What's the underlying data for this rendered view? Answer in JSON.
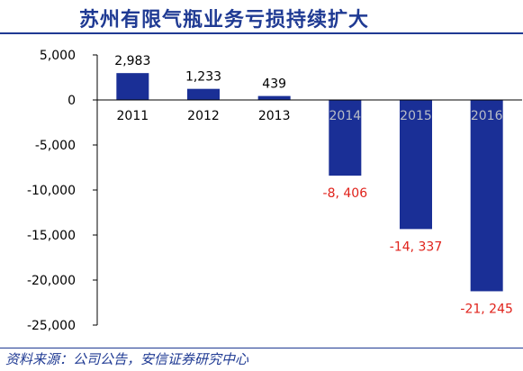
{
  "title": "苏州有限气瓶业务亏损持续扩大",
  "source": "资料来源：公司公告，安信证券研究中心",
  "colors": {
    "bar": "#1a2f96",
    "positive_label": "#000000",
    "negative_label": "#e0221b",
    "title": "#1f3a93",
    "axis": "#000000",
    "faded_category": "#b9bdc7"
  },
  "chart_data": {
    "type": "bar",
    "title": "苏州有限气瓶业务亏损持续扩大",
    "categories": [
      "2011",
      "2012",
      "2013",
      "2014",
      "2015",
      "2016"
    ],
    "values": [
      2983,
      1233,
      439,
      -8406,
      -14337,
      -21245
    ],
    "value_labels": [
      "2,983",
      "1,233",
      "439",
      "-8, 406",
      "-14, 337",
      "-21, 245"
    ],
    "yticks": [
      5000,
      0,
      -5000,
      -10000,
      -15000,
      -20000,
      -25000
    ],
    "ytick_labels": [
      "5,000",
      "0",
      "-5,000",
      "-10,000",
      "-15,000",
      "-20,000",
      "-25,000"
    ],
    "ylim": [
      -25000,
      5000
    ],
    "xlabel": "",
    "ylabel": "",
    "grid": false,
    "legend": "none"
  }
}
